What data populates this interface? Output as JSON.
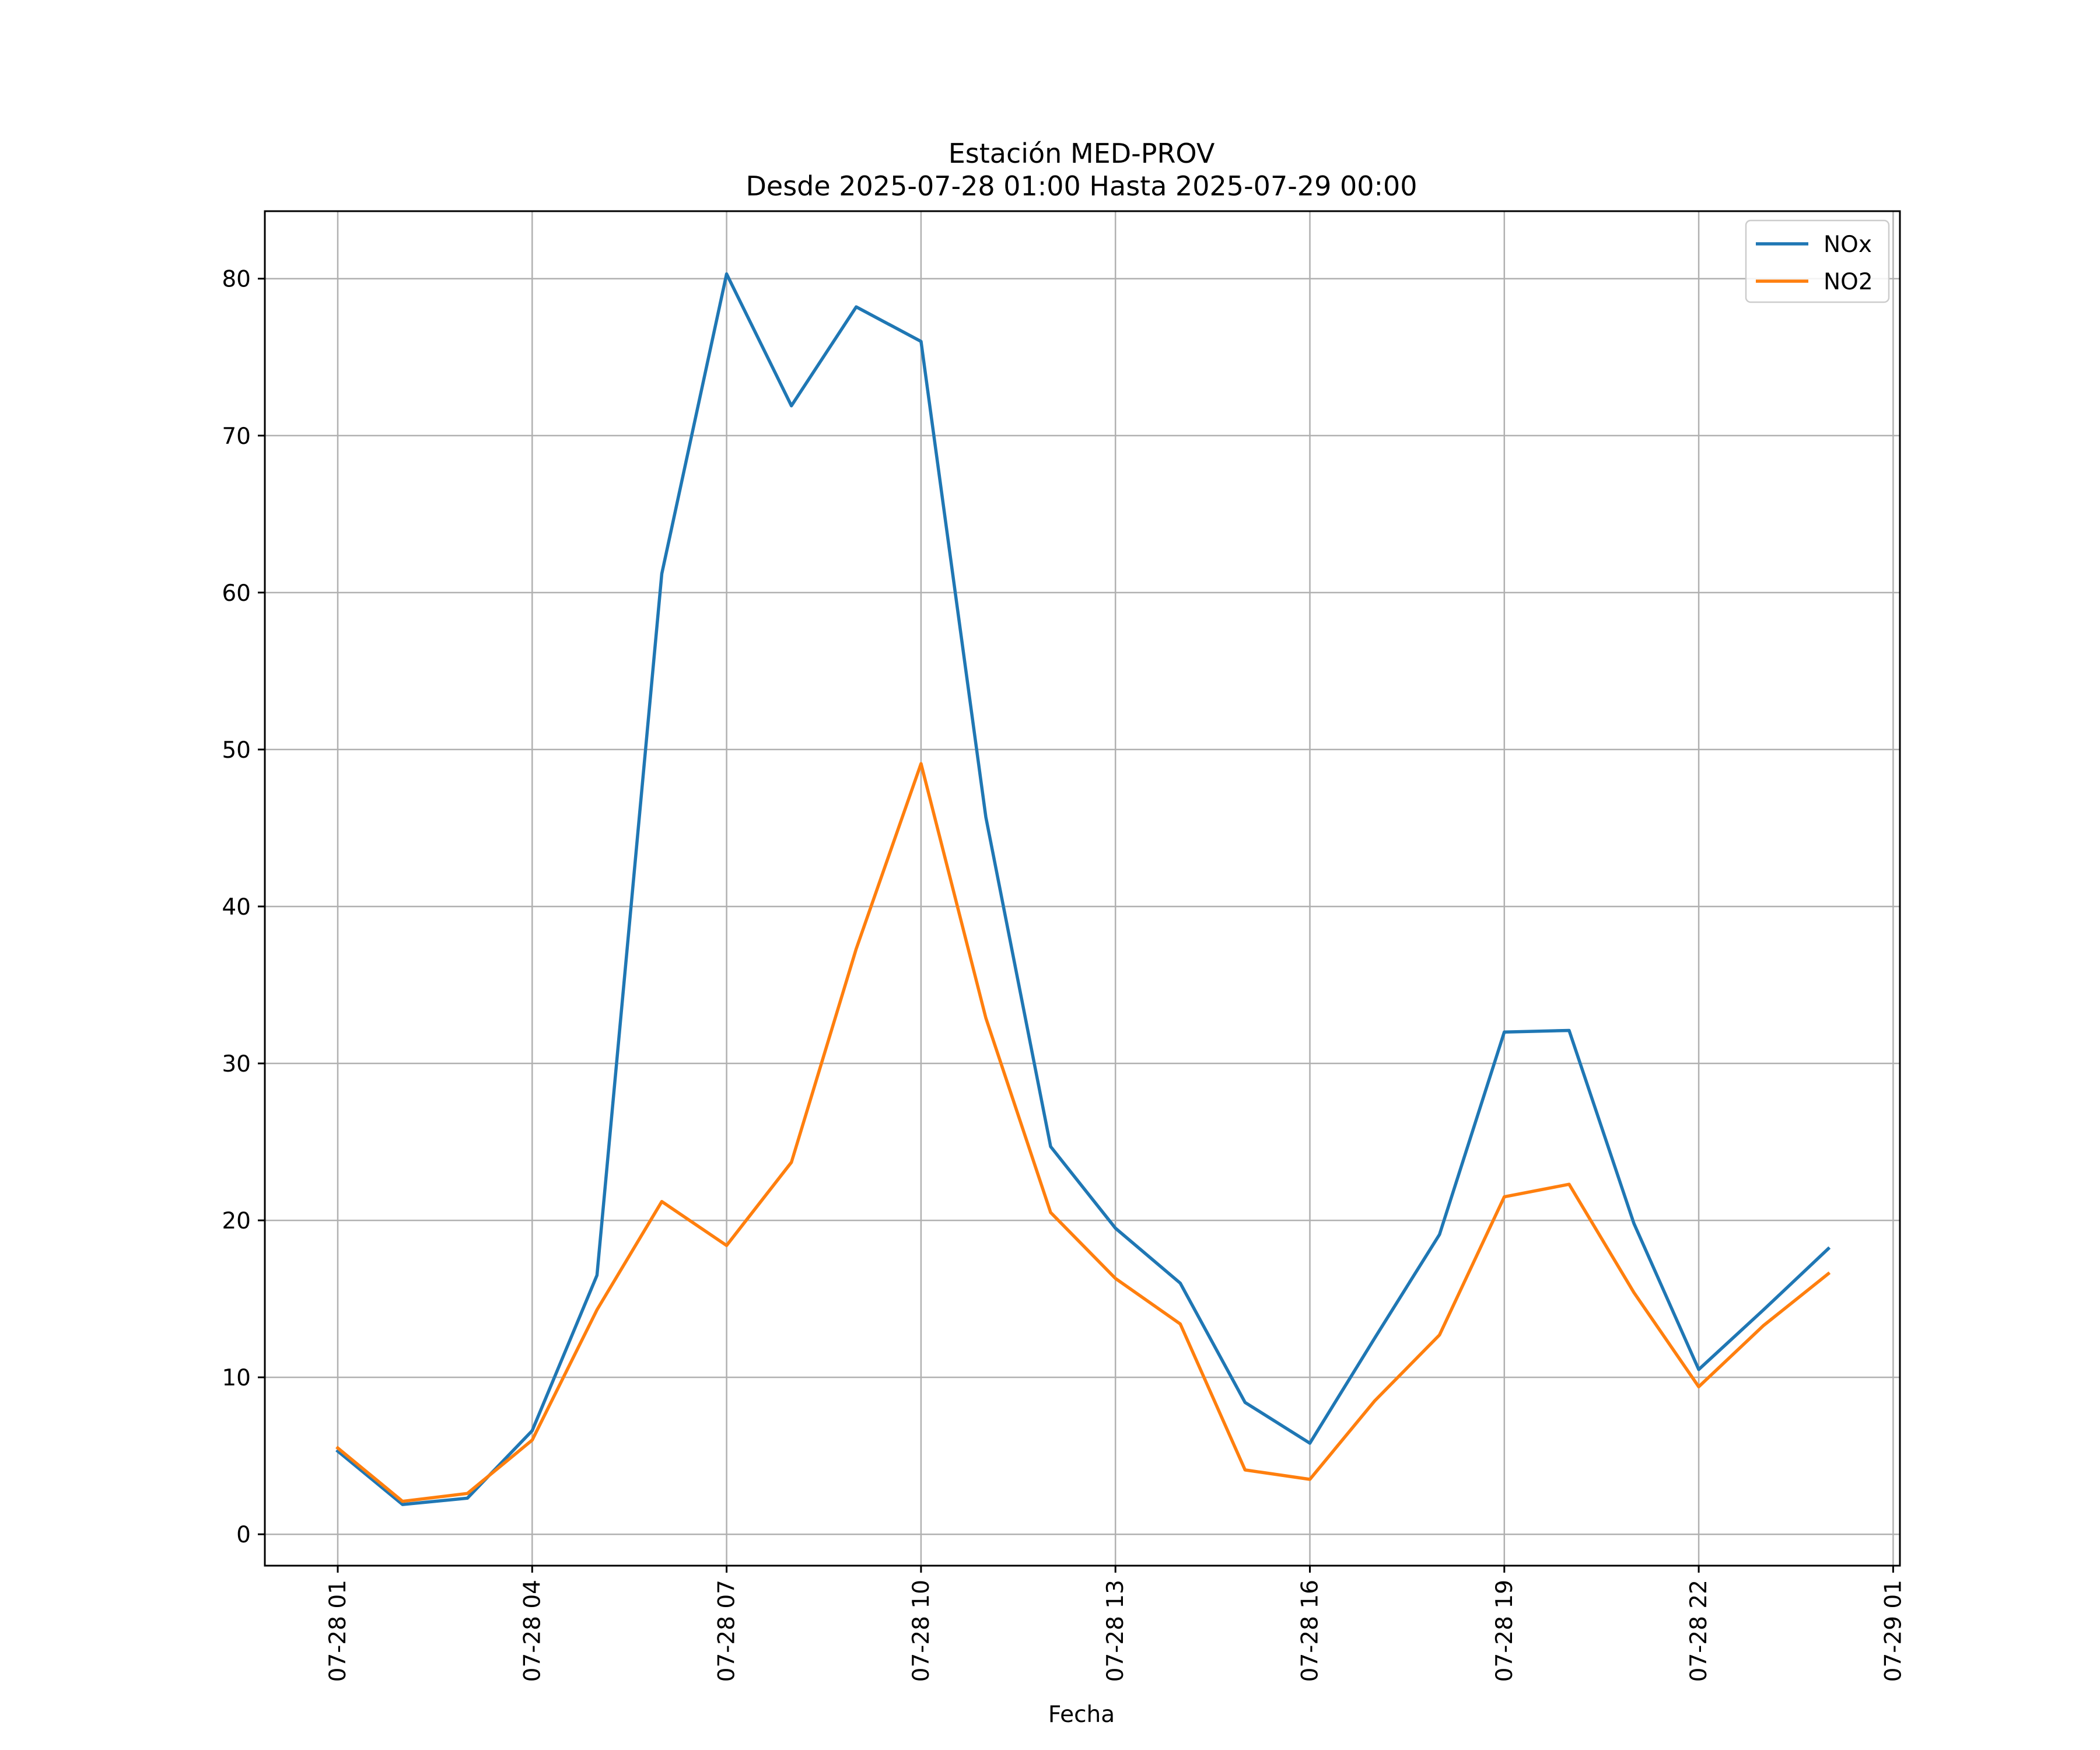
{
  "chart_data": {
    "type": "line",
    "title": "Estación MED-PROV",
    "subtitle": "Desde 2025-07-28 01:00 Hasta 2025-07-29 00:00",
    "xlabel": "Fecha",
    "ylabel": "",
    "x": [
      "07-28 01",
      "07-28 02",
      "07-28 03",
      "07-28 04",
      "07-28 05",
      "07-28 06",
      "07-28 07",
      "07-28 08",
      "07-28 09",
      "07-28 10",
      "07-28 11",
      "07-28 12",
      "07-28 13",
      "07-28 14",
      "07-28 15",
      "07-28 16",
      "07-28 17",
      "07-28 18",
      "07-28 19",
      "07-28 20",
      "07-28 21",
      "07-28 22",
      "07-28 23",
      "07-29 00"
    ],
    "xticks": [
      "07-28 01",
      "07-28 04",
      "07-28 07",
      "07-28 10",
      "07-28 13",
      "07-28 16",
      "07-28 19",
      "07-28 22",
      "07-29 01"
    ],
    "yticks": [
      0,
      10,
      20,
      30,
      40,
      50,
      60,
      70,
      80
    ],
    "ylim": [
      -2,
      84.3
    ],
    "grid": true,
    "legend_position": "top-right",
    "series": [
      {
        "name": "NOx",
        "color": "#1f77b4",
        "values": [
          5.3,
          1.9,
          2.3,
          6.6,
          16.5,
          61.2,
          80.3,
          71.9,
          78.2,
          76.0,
          45.7,
          24.7,
          19.5,
          16.0,
          8.4,
          5.8,
          12.5,
          19.1,
          32.0,
          32.1,
          19.8,
          10.5,
          14.3,
          18.2
        ]
      },
      {
        "name": "NO2",
        "color": "#ff7f0e",
        "values": [
          5.5,
          2.1,
          2.6,
          6.0,
          14.3,
          21.2,
          18.4,
          23.7,
          37.3,
          49.1,
          32.9,
          20.5,
          16.3,
          13.4,
          4.1,
          3.5,
          8.5,
          12.7,
          21.5,
          22.3,
          15.4,
          9.4,
          13.3,
          16.6
        ]
      }
    ]
  }
}
